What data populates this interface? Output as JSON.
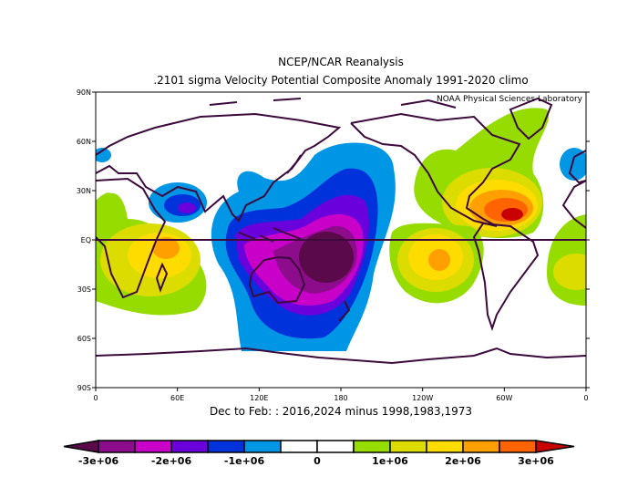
{
  "chart_data": {
    "type": "heatmap",
    "title": "NCEP/NCAR Reanalysis",
    "subtitle": ".2101 sigma Velocity Potential  Composite Anomaly 1991-2020 climo",
    "credit": "NOAA Physical Sciences Laboratory",
    "xlabel": "Dec to Feb: : 2016,2024 minus 1998,1983,1973",
    "x_ticks": [
      "0",
      "60E",
      "120E",
      "180",
      "120W",
      "60W",
      "0"
    ],
    "x_tick_lons": [
      0,
      60,
      120,
      180,
      240,
      300,
      360
    ],
    "y_ticks": [
      "90N",
      "60N",
      "30N",
      "EQ",
      "30S",
      "60S",
      "90S"
    ],
    "y_tick_lats": [
      90,
      60,
      30,
      0,
      -30,
      -60,
      -90
    ],
    "xlim": [
      0,
      360
    ],
    "ylim": [
      -90,
      90
    ],
    "colorbar": {
      "labels": [
        "-3e+06",
        "-2e+06",
        "-1e+06",
        "0",
        "1e+06",
        "2e+06",
        "3e+06"
      ],
      "colors": [
        "#5a0a4a",
        "#8c0c8c",
        "#c800c8",
        "#6a00dc",
        "#0032dc",
        "#0096e6",
        "#ffffff",
        "#ffffff",
        "#96dc00",
        "#dcdc00",
        "#ffdc00",
        "#ffa000",
        "#ff6400",
        "#c80000"
      ]
    },
    "anomalies": [
      {
        "name": "central-pacific-negative",
        "lon": 170,
        "lat": -15,
        "peak": -3200000.0
      },
      {
        "name": "caribbean-positive",
        "lon": 290,
        "lat": 15,
        "peak": 3200000.0
      },
      {
        "name": "east-africa-positive",
        "lon": 45,
        "lat": -5,
        "peak": 2200000.0
      },
      {
        "name": "east-pacific-positive",
        "lon": 250,
        "lat": -12,
        "peak": 2000000.0
      },
      {
        "name": "south-atlantic-positive",
        "lon": 345,
        "lat": -20,
        "peak": 1500000.0
      },
      {
        "name": "arabia-negative",
        "lon": 60,
        "lat": 22,
        "peak": -1200000.0
      }
    ]
  }
}
